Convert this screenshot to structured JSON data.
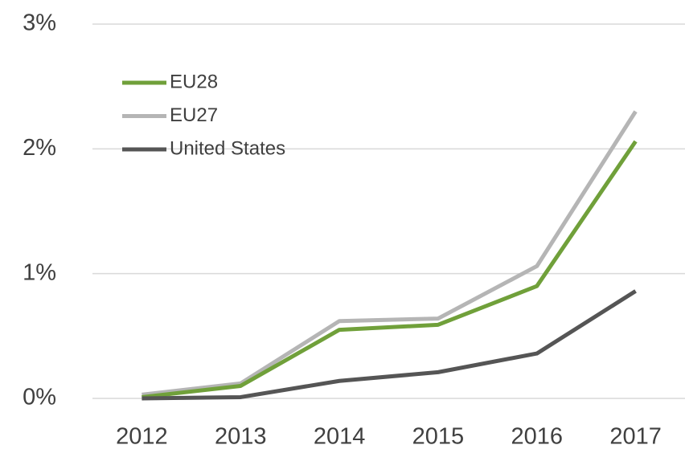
{
  "chart_data": {
    "type": "line",
    "categories": [
      "2012",
      "2013",
      "2014",
      "2015",
      "2016",
      "2017"
    ],
    "series": [
      {
        "name": "EU28",
        "color": "#70a03a",
        "values": [
          0.01,
          0.1,
          0.55,
          0.59,
          0.9,
          2.06
        ]
      },
      {
        "name": "EU27",
        "color": "#b5b5b5",
        "values": [
          0.03,
          0.12,
          0.62,
          0.64,
          1.06,
          2.3
        ]
      },
      {
        "name": "United States",
        "color": "#555555",
        "values": [
          0,
          0.01,
          0.14,
          0.21,
          0.36,
          0.86
        ]
      }
    ],
    "ylim": [
      0,
      3
    ],
    "yticks": [
      {
        "value": 0,
        "label": "0%"
      },
      {
        "value": 1,
        "label": "1%"
      },
      {
        "value": 2,
        "label": "2%"
      },
      {
        "value": 3,
        "label": "3%"
      }
    ],
    "grid": true,
    "legend": "upper left"
  }
}
